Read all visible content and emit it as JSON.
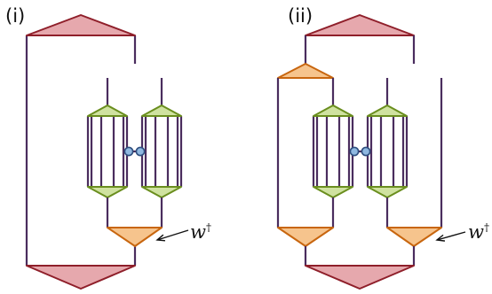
{
  "panels": [
    {
      "label": "(i)"
    },
    {
      "label": "(ii)"
    }
  ],
  "annotation": {
    "base": "w",
    "sup": "†"
  },
  "colors": {
    "line": "#4a2d5e",
    "pink_fill": "#e6a8ad",
    "pink_stroke": "#8f1f2a",
    "green_fill": "#cfe2a0",
    "green_stroke": "#6a8e1e",
    "orange_fill": "#f6c48d",
    "orange_stroke": "#c8660f",
    "node_fill": "#8fb8e0",
    "node_stroke": "#2f4f7f"
  }
}
